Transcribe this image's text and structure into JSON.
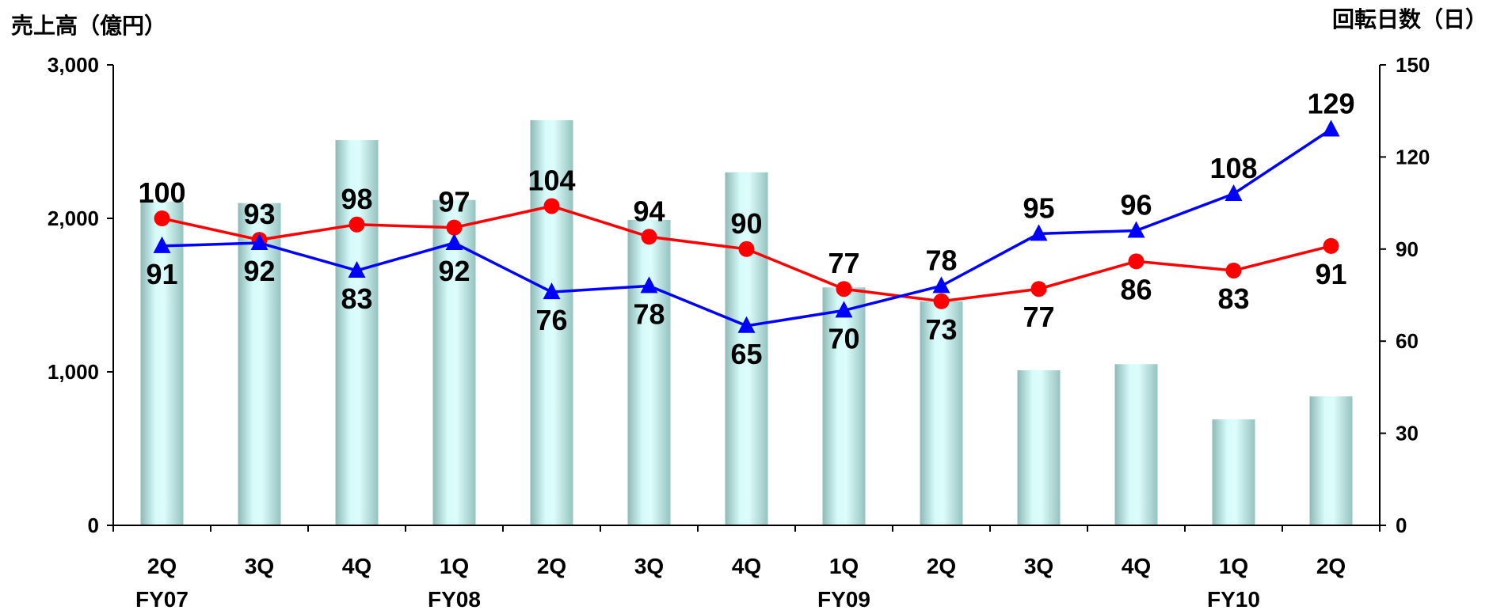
{
  "chart_data": {
    "type": "bar",
    "left_axis_title": "売上高（億円）",
    "right_axis_title": "回転日数（日）",
    "categories": [
      "2Q",
      "3Q",
      "4Q",
      "1Q",
      "2Q",
      "3Q",
      "4Q",
      "1Q",
      "2Q",
      "3Q",
      "4Q",
      "1Q",
      "2Q"
    ],
    "fiscal_years": [
      {
        "label": "FY07",
        "index": 0
      },
      {
        "label": "FY08",
        "index": 3
      },
      {
        "label": "FY09",
        "index": 7
      },
      {
        "label": "FY10",
        "index": 11
      }
    ],
    "left_axis": {
      "ylim": [
        0,
        3000
      ],
      "ticks": [
        "0",
        "1,000",
        "2,000",
        "3,000"
      ],
      "tick_values": [
        0,
        1000,
        2000,
        3000
      ]
    },
    "right_axis": {
      "ylim": [
        0,
        150
      ],
      "ticks": [
        "0",
        "30",
        "60",
        "90",
        "120",
        "150"
      ],
      "tick_values": [
        0,
        30,
        60,
        90,
        120,
        150
      ]
    },
    "bar_series": {
      "values": [
        2110,
        2100,
        2510,
        2120,
        2640,
        1990,
        2300,
        1550,
        1460,
        1010,
        1050,
        690,
        840
      ],
      "axis": "left",
      "color": "#a8d8d6"
    },
    "line_series": [
      {
        "values": [
          100,
          93,
          98,
          97,
          104,
          94,
          90,
          77,
          73,
          77,
          86,
          83,
          91
        ],
        "labels": [
          "100",
          "93",
          "98",
          "97",
          "104",
          "94",
          "90",
          "77",
          "73",
          "77",
          "86",
          "83",
          "91"
        ],
        "label_pos": [
          "above",
          "above",
          "above",
          "above",
          "above",
          "above",
          "above",
          "above",
          "below",
          "below",
          "below",
          "below",
          "below"
        ],
        "marker": "circle",
        "color": "#ff0000",
        "axis": "right"
      },
      {
        "values": [
          91,
          92,
          83,
          92,
          76,
          78,
          65,
          70,
          78,
          95,
          96,
          108,
          129
        ],
        "labels": [
          "91",
          "92",
          "83",
          "92",
          "76",
          "78",
          "65",
          "70",
          "78",
          "95",
          "96",
          "108",
          "129"
        ],
        "label_pos": [
          "below",
          "below",
          "below",
          "below",
          "below",
          "below",
          "below",
          "below",
          "above",
          "above",
          "above",
          "above",
          "above"
        ],
        "marker": "triangle",
        "color": "#0000ff",
        "axis": "right"
      }
    ],
    "grid": false
  }
}
